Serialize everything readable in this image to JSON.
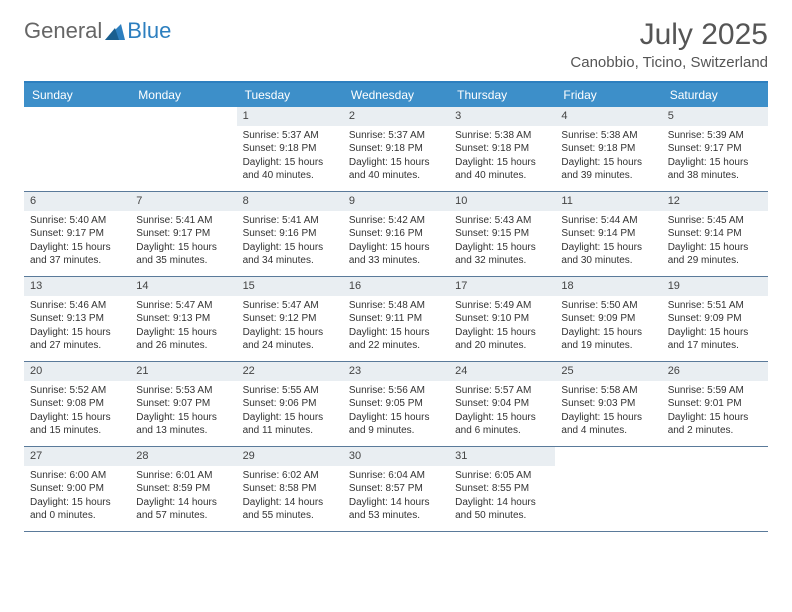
{
  "logo": {
    "word1": "General",
    "word2": "Blue"
  },
  "title": "July 2025",
  "location": "Canobbio, Ticino, Switzerland",
  "dayNames": [
    "Sunday",
    "Monday",
    "Tuesday",
    "Wednesday",
    "Thursday",
    "Friday",
    "Saturday"
  ],
  "colors": {
    "header_bar": "#3d8fc9",
    "border": "#2d7fbf",
    "daynum_bg": "#e9eef2",
    "text": "#333333",
    "logo_blue": "#2d7fbf"
  },
  "weeks": [
    [
      null,
      null,
      {
        "n": "1",
        "sr": "Sunrise: 5:37 AM",
        "ss": "Sunset: 9:18 PM",
        "dl": "Daylight: 15 hours and 40 minutes."
      },
      {
        "n": "2",
        "sr": "Sunrise: 5:37 AM",
        "ss": "Sunset: 9:18 PM",
        "dl": "Daylight: 15 hours and 40 minutes."
      },
      {
        "n": "3",
        "sr": "Sunrise: 5:38 AM",
        "ss": "Sunset: 9:18 PM",
        "dl": "Daylight: 15 hours and 40 minutes."
      },
      {
        "n": "4",
        "sr": "Sunrise: 5:38 AM",
        "ss": "Sunset: 9:18 PM",
        "dl": "Daylight: 15 hours and 39 minutes."
      },
      {
        "n": "5",
        "sr": "Sunrise: 5:39 AM",
        "ss": "Sunset: 9:17 PM",
        "dl": "Daylight: 15 hours and 38 minutes."
      }
    ],
    [
      {
        "n": "6",
        "sr": "Sunrise: 5:40 AM",
        "ss": "Sunset: 9:17 PM",
        "dl": "Daylight: 15 hours and 37 minutes."
      },
      {
        "n": "7",
        "sr": "Sunrise: 5:41 AM",
        "ss": "Sunset: 9:17 PM",
        "dl": "Daylight: 15 hours and 35 minutes."
      },
      {
        "n": "8",
        "sr": "Sunrise: 5:41 AM",
        "ss": "Sunset: 9:16 PM",
        "dl": "Daylight: 15 hours and 34 minutes."
      },
      {
        "n": "9",
        "sr": "Sunrise: 5:42 AM",
        "ss": "Sunset: 9:16 PM",
        "dl": "Daylight: 15 hours and 33 minutes."
      },
      {
        "n": "10",
        "sr": "Sunrise: 5:43 AM",
        "ss": "Sunset: 9:15 PM",
        "dl": "Daylight: 15 hours and 32 minutes."
      },
      {
        "n": "11",
        "sr": "Sunrise: 5:44 AM",
        "ss": "Sunset: 9:14 PM",
        "dl": "Daylight: 15 hours and 30 minutes."
      },
      {
        "n": "12",
        "sr": "Sunrise: 5:45 AM",
        "ss": "Sunset: 9:14 PM",
        "dl": "Daylight: 15 hours and 29 minutes."
      }
    ],
    [
      {
        "n": "13",
        "sr": "Sunrise: 5:46 AM",
        "ss": "Sunset: 9:13 PM",
        "dl": "Daylight: 15 hours and 27 minutes."
      },
      {
        "n": "14",
        "sr": "Sunrise: 5:47 AM",
        "ss": "Sunset: 9:13 PM",
        "dl": "Daylight: 15 hours and 26 minutes."
      },
      {
        "n": "15",
        "sr": "Sunrise: 5:47 AM",
        "ss": "Sunset: 9:12 PM",
        "dl": "Daylight: 15 hours and 24 minutes."
      },
      {
        "n": "16",
        "sr": "Sunrise: 5:48 AM",
        "ss": "Sunset: 9:11 PM",
        "dl": "Daylight: 15 hours and 22 minutes."
      },
      {
        "n": "17",
        "sr": "Sunrise: 5:49 AM",
        "ss": "Sunset: 9:10 PM",
        "dl": "Daylight: 15 hours and 20 minutes."
      },
      {
        "n": "18",
        "sr": "Sunrise: 5:50 AM",
        "ss": "Sunset: 9:09 PM",
        "dl": "Daylight: 15 hours and 19 minutes."
      },
      {
        "n": "19",
        "sr": "Sunrise: 5:51 AM",
        "ss": "Sunset: 9:09 PM",
        "dl": "Daylight: 15 hours and 17 minutes."
      }
    ],
    [
      {
        "n": "20",
        "sr": "Sunrise: 5:52 AM",
        "ss": "Sunset: 9:08 PM",
        "dl": "Daylight: 15 hours and 15 minutes."
      },
      {
        "n": "21",
        "sr": "Sunrise: 5:53 AM",
        "ss": "Sunset: 9:07 PM",
        "dl": "Daylight: 15 hours and 13 minutes."
      },
      {
        "n": "22",
        "sr": "Sunrise: 5:55 AM",
        "ss": "Sunset: 9:06 PM",
        "dl": "Daylight: 15 hours and 11 minutes."
      },
      {
        "n": "23",
        "sr": "Sunrise: 5:56 AM",
        "ss": "Sunset: 9:05 PM",
        "dl": "Daylight: 15 hours and 9 minutes."
      },
      {
        "n": "24",
        "sr": "Sunrise: 5:57 AM",
        "ss": "Sunset: 9:04 PM",
        "dl": "Daylight: 15 hours and 6 minutes."
      },
      {
        "n": "25",
        "sr": "Sunrise: 5:58 AM",
        "ss": "Sunset: 9:03 PM",
        "dl": "Daylight: 15 hours and 4 minutes."
      },
      {
        "n": "26",
        "sr": "Sunrise: 5:59 AM",
        "ss": "Sunset: 9:01 PM",
        "dl": "Daylight: 15 hours and 2 minutes."
      }
    ],
    [
      {
        "n": "27",
        "sr": "Sunrise: 6:00 AM",
        "ss": "Sunset: 9:00 PM",
        "dl": "Daylight: 15 hours and 0 minutes."
      },
      {
        "n": "28",
        "sr": "Sunrise: 6:01 AM",
        "ss": "Sunset: 8:59 PM",
        "dl": "Daylight: 14 hours and 57 minutes."
      },
      {
        "n": "29",
        "sr": "Sunrise: 6:02 AM",
        "ss": "Sunset: 8:58 PM",
        "dl": "Daylight: 14 hours and 55 minutes."
      },
      {
        "n": "30",
        "sr": "Sunrise: 6:04 AM",
        "ss": "Sunset: 8:57 PM",
        "dl": "Daylight: 14 hours and 53 minutes."
      },
      {
        "n": "31",
        "sr": "Sunrise: 6:05 AM",
        "ss": "Sunset: 8:55 PM",
        "dl": "Daylight: 14 hours and 50 minutes."
      },
      null,
      null
    ]
  ]
}
